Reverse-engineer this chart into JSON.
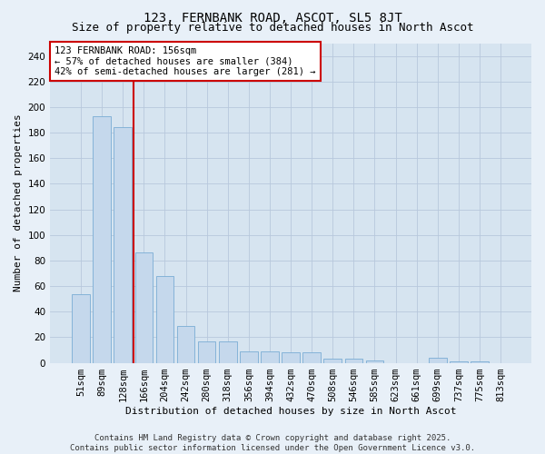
{
  "title": "123, FERNBANK ROAD, ASCOT, SL5 8JT",
  "subtitle": "Size of property relative to detached houses in North Ascot",
  "xlabel": "Distribution of detached houses by size in North Ascot",
  "ylabel": "Number of detached properties",
  "categories": [
    "51sqm",
    "89sqm",
    "128sqm",
    "166sqm",
    "204sqm",
    "242sqm",
    "280sqm",
    "318sqm",
    "356sqm",
    "394sqm",
    "432sqm",
    "470sqm",
    "508sqm",
    "546sqm",
    "585sqm",
    "623sqm",
    "661sqm",
    "699sqm",
    "737sqm",
    "775sqm",
    "813sqm"
  ],
  "values": [
    54,
    193,
    184,
    86,
    68,
    29,
    17,
    17,
    9,
    9,
    8,
    8,
    3,
    3,
    2,
    0,
    0,
    4,
    1,
    1,
    0
  ],
  "bar_color": "#c5d8ec",
  "bar_edge_color": "#7aadd4",
  "vline_color": "#cc0000",
  "vline_pos": 2.5,
  "annotation_text": "123 FERNBANK ROAD: 156sqm\n← 57% of detached houses are smaller (384)\n42% of semi-detached houses are larger (281) →",
  "annotation_box_facecolor": "#ffffff",
  "annotation_box_edgecolor": "#cc0000",
  "ylim": [
    0,
    250
  ],
  "yticks": [
    0,
    20,
    40,
    60,
    80,
    100,
    120,
    140,
    160,
    180,
    200,
    220,
    240
  ],
  "grid_color": "#b8c8dc",
  "plot_bg_color": "#d6e4f0",
  "fig_bg_color": "#e8f0f8",
  "footer_text": "Contains HM Land Registry data © Crown copyright and database right 2025.\nContains public sector information licensed under the Open Government Licence v3.0.",
  "title_fontsize": 10,
  "subtitle_fontsize": 9,
  "axis_label_fontsize": 8,
  "tick_fontsize": 7.5,
  "annotation_fontsize": 7.5,
  "footer_fontsize": 6.5
}
